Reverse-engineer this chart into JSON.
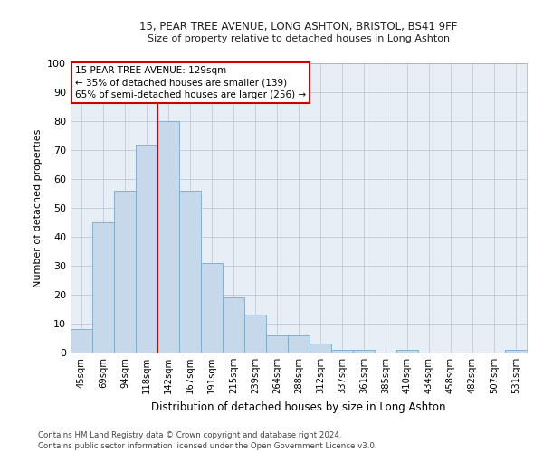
{
  "title_line1": "15, PEAR TREE AVENUE, LONG ASHTON, BRISTOL, BS41 9FF",
  "title_line2": "Size of property relative to detached houses in Long Ashton",
  "xlabel": "Distribution of detached houses by size in Long Ashton",
  "ylabel": "Number of detached properties",
  "footer_line1": "Contains HM Land Registry data © Crown copyright and database right 2024.",
  "footer_line2": "Contains public sector information licensed under the Open Government Licence v3.0.",
  "categories": [
    "45sqm",
    "69sqm",
    "94sqm",
    "118sqm",
    "142sqm",
    "167sqm",
    "191sqm",
    "215sqm",
    "239sqm",
    "264sqm",
    "288sqm",
    "312sqm",
    "337sqm",
    "361sqm",
    "385sqm",
    "410sqm",
    "434sqm",
    "458sqm",
    "482sqm",
    "507sqm",
    "531sqm"
  ],
  "values": [
    8,
    45,
    56,
    72,
    80,
    56,
    31,
    19,
    13,
    6,
    6,
    3,
    1,
    1,
    0,
    1,
    0,
    0,
    0,
    0,
    1
  ],
  "bar_color": "#c8d8eb",
  "bar_edge_color": "#7aa8c8",
  "bar_width": 1.0,
  "grid_color": "#c0cad8",
  "background_color": "#e8eef5",
  "vline_x": 3.5,
  "vline_color": "#cc0000",
  "annotation_line1": "15 PEAR TREE AVENUE: 129sqm",
  "annotation_line2": "← 35% of detached houses are smaller (139)",
  "annotation_line3": "65% of semi-detached houses are larger (256) →",
  "annotation_box_facecolor": "#ffffff",
  "annotation_box_edgecolor": "#cc0000",
  "ylim": [
    0,
    100
  ],
  "yticks": [
    0,
    10,
    20,
    30,
    40,
    50,
    60,
    70,
    80,
    90,
    100
  ]
}
